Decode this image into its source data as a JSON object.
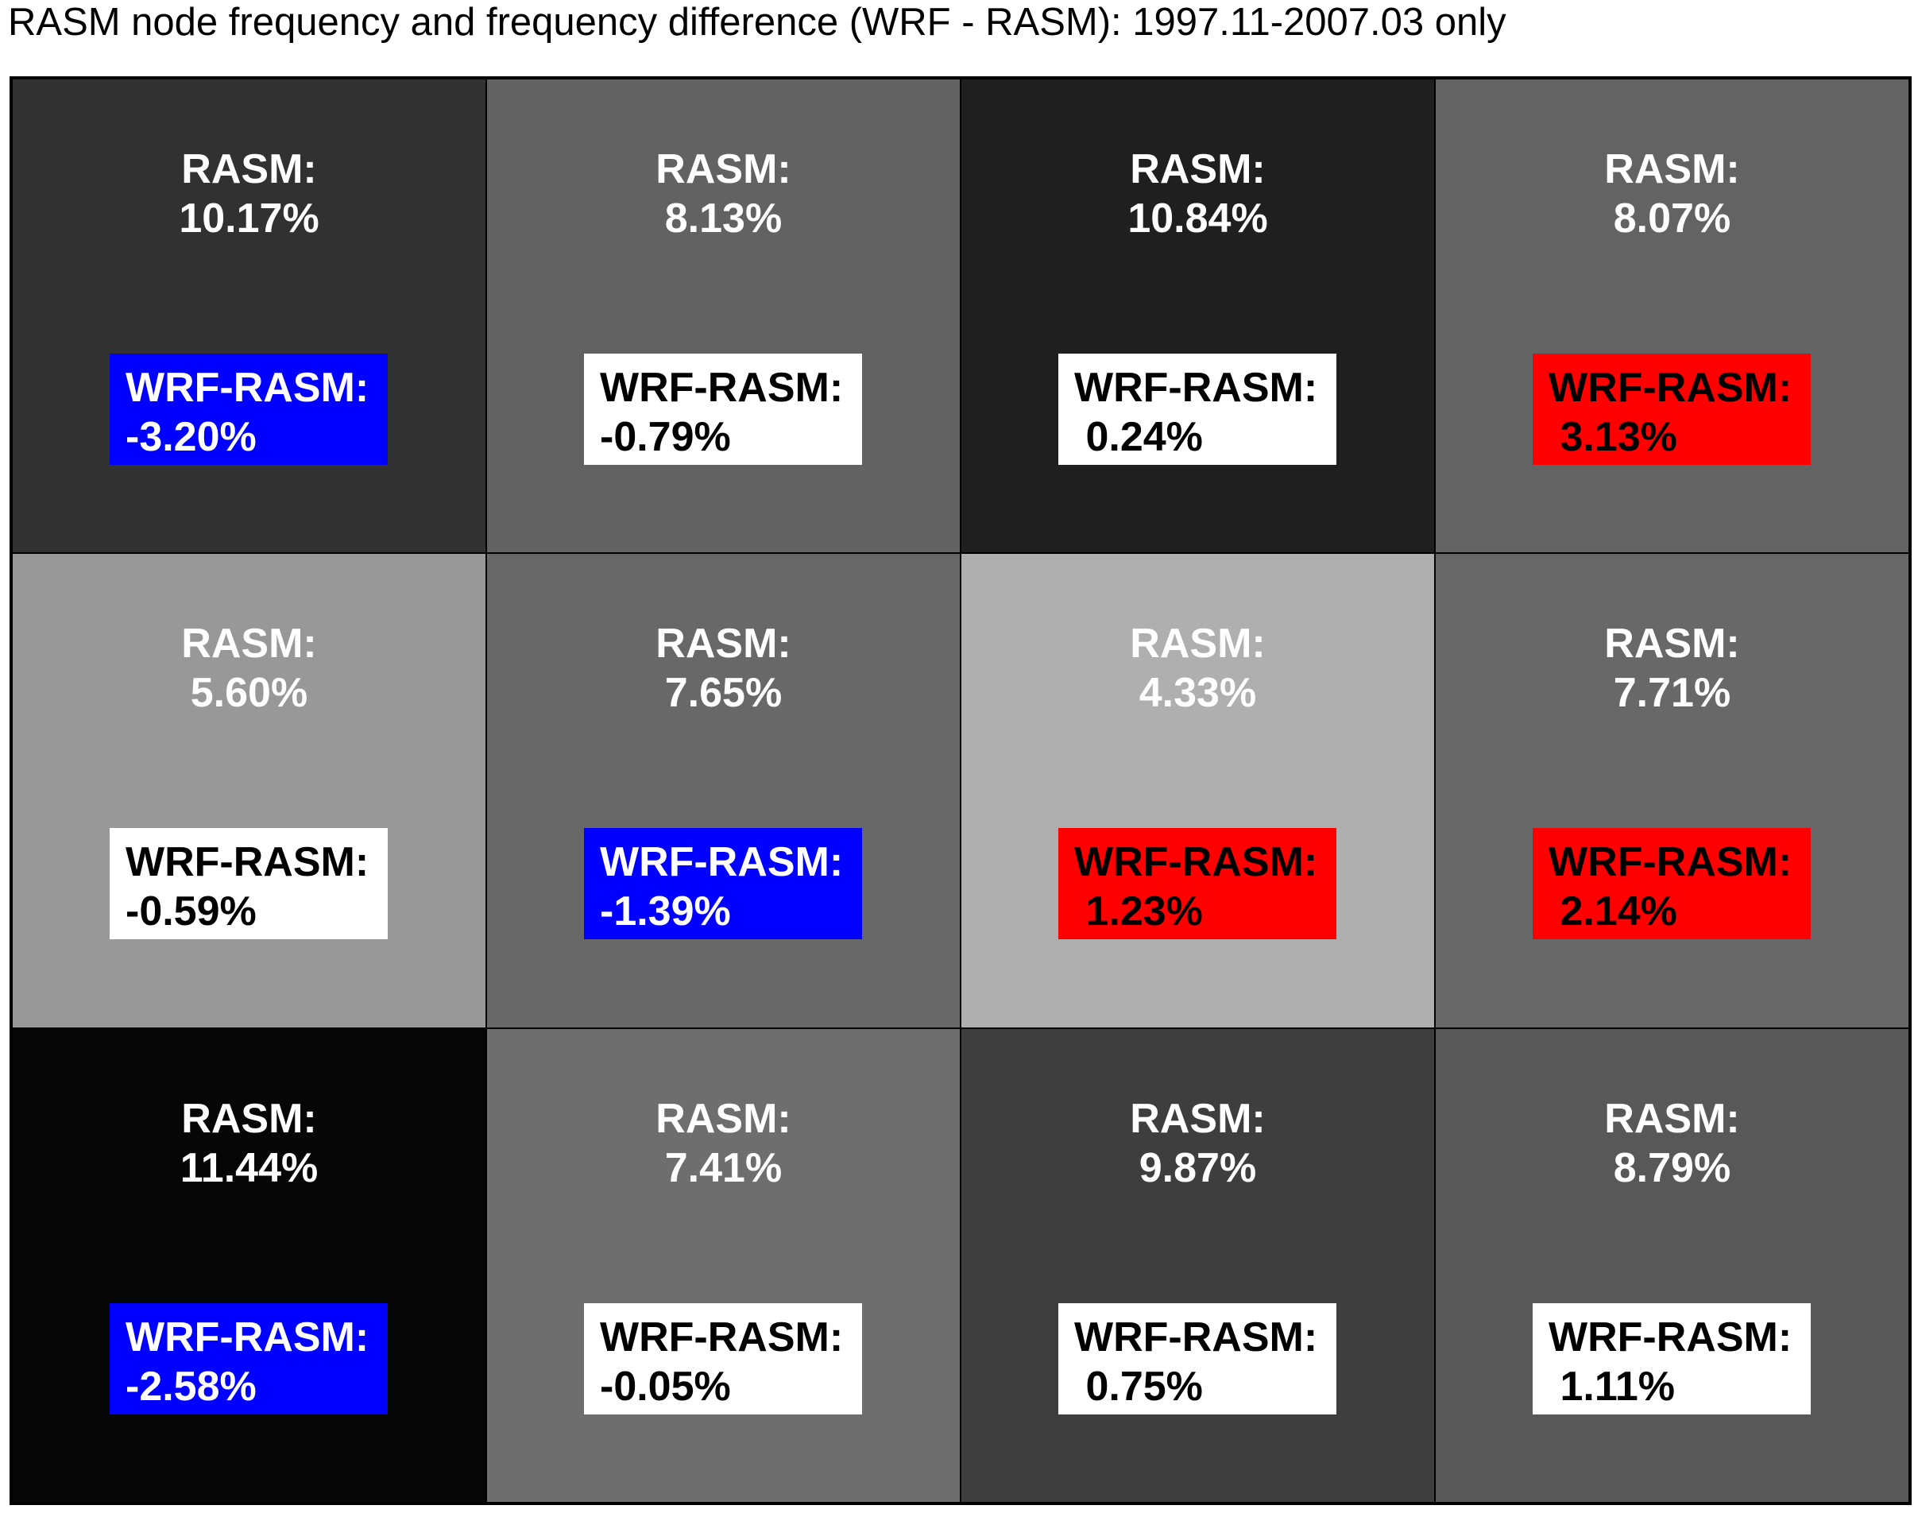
{
  "title": "RASM node frequency and frequency difference (WRF - RASM): 1997.11-2007.03 only",
  "chart_data": {
    "type": "heatmap",
    "title": "RASM node frequency and frequency difference (WRF - RASM): 1997.11-2007.03 only",
    "rows": 3,
    "cols": 4,
    "freq_label": "RASM:",
    "diff_label": "WRF-RASM:",
    "colors": {
      "negative": "#0000ff",
      "neutral": "#ffffff",
      "positive": "#ff0000"
    },
    "cells": [
      {
        "rasm": "10.17%",
        "diff": "-3.20%",
        "rasm_value": 10.17,
        "diff_value": -3.2,
        "shade": "#313131",
        "diff_color": "negative"
      },
      {
        "rasm": "8.13%",
        "diff": "-0.79%",
        "rasm_value": 8.13,
        "diff_value": -0.79,
        "shade": "#626262",
        "diff_color": "neutral"
      },
      {
        "rasm": "10.84%",
        "diff": " 0.24%",
        "rasm_value": 10.84,
        "diff_value": 0.24,
        "shade": "#1f1f1f",
        "diff_color": "neutral"
      },
      {
        "rasm": "8.07%",
        "diff": " 3.13%",
        "rasm_value": 8.07,
        "diff_value": 3.13,
        "shade": "#636363",
        "diff_color": "positive"
      },
      {
        "rasm": "5.60%",
        "diff": "-0.59%",
        "rasm_value": 5.6,
        "diff_value": -0.59,
        "shade": "#989898",
        "diff_color": "neutral"
      },
      {
        "rasm": "7.65%",
        "diff": "-1.39%",
        "rasm_value": 7.65,
        "diff_value": -1.39,
        "shade": "#686868",
        "diff_color": "negative"
      },
      {
        "rasm": "4.33%",
        "diff": " 1.23%",
        "rasm_value": 4.33,
        "diff_value": 1.23,
        "shade": "#afafaf",
        "diff_color": "positive"
      },
      {
        "rasm": "7.71%",
        "diff": " 2.14%",
        "rasm_value": 7.71,
        "diff_value": 2.14,
        "shade": "#686868",
        "diff_color": "positive"
      },
      {
        "rasm": "11.44%",
        "diff": "-2.58%",
        "rasm_value": 11.44,
        "diff_value": -2.58,
        "shade": "#060606",
        "diff_color": "negative"
      },
      {
        "rasm": "7.41%",
        "diff": "-0.05%",
        "rasm_value": 7.41,
        "diff_value": -0.05,
        "shade": "#6e6e6e",
        "diff_color": "neutral"
      },
      {
        "rasm": "9.87%",
        "diff": " 0.75%",
        "rasm_value": 9.87,
        "diff_value": 0.75,
        "shade": "#3e3e3e",
        "diff_color": "neutral"
      },
      {
        "rasm": "8.79%",
        "diff": " 1.11%",
        "rasm_value": 8.79,
        "diff_value": 1.11,
        "shade": "#585858",
        "diff_color": "neutral"
      }
    ]
  }
}
